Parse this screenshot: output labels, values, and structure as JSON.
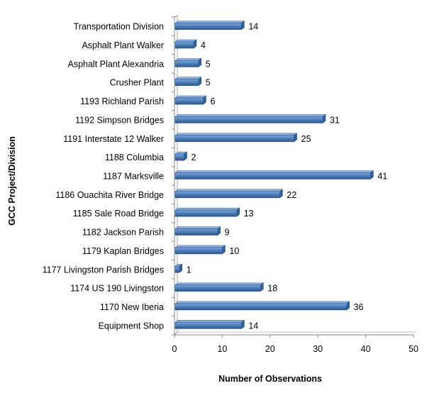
{
  "chart_data": {
    "type": "bar",
    "orientation": "horizontal",
    "categories": [
      "Transportation Division",
      "Asphalt Plant Walker",
      "Asphalt Plant Alexandria",
      "Crusher Plant",
      "1193 Richland Parish",
      "1192 Simpson Bridges",
      "1191 Interstate 12 Walker",
      "1188 Columbia",
      "1187 Marksville",
      "1186 Ouachita River Bridge",
      "1185 Sale Road Bridge",
      "1182 Jackson Parish",
      "1179 Kaplan Bridges",
      "1177 Livingston Parish Bridges",
      "1174 US 190 Livingston",
      "1170 New Iberia",
      "Equipment Shop"
    ],
    "values": [
      14,
      4,
      5,
      5,
      6,
      31,
      25,
      2,
      41,
      22,
      13,
      9,
      10,
      1,
      18,
      36,
      14
    ],
    "xlabel": "Number of Observations",
    "ylabel": "GCC Project/Division",
    "xlim": [
      0,
      50
    ],
    "xticks": [
      "0",
      "10",
      "20",
      "30",
      "40",
      "50"
    ],
    "bar_color": "#4f81bd",
    "grid": false,
    "legend": "none"
  }
}
